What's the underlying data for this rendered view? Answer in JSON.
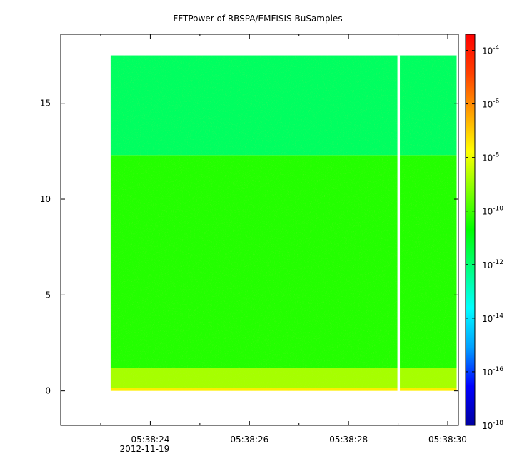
{
  "chart_data": {
    "type": "heatmap",
    "title": "FFTPower of RBSPA/EMFISIS  BuSamples",
    "xlabel": "",
    "ylabel": "",
    "xlim": [
      "05:38:23.0",
      "05:38:30.0"
    ],
    "ylim": [
      -1.8,
      18.6
    ],
    "x_ticks": [
      {
        "value": 1.0,
        "label": "05:38:24",
        "sublabel": "2012-11-19"
      },
      {
        "value": 3.0,
        "label": "05:38:26",
        "sublabel": ""
      },
      {
        "value": 5.0,
        "label": "05:38:28",
        "sublabel": ""
      },
      {
        "value": 7.0,
        "label": "05:38:30",
        "sublabel": ""
      }
    ],
    "x_minor_ticks": [
      0.0,
      2.0,
      4.0,
      6.0
    ],
    "y_ticks": [
      0,
      5,
      10,
      15
    ],
    "data_extent": {
      "x_start": 0.2,
      "x_end": 7.18,
      "y_start": 0.0,
      "y_end": 17.5
    },
    "gap": {
      "x_start": 6.0,
      "x_end": 6.05
    },
    "power_bands": [
      {
        "y_from": 0.0,
        "y_to": 0.15,
        "log10_power": -7.5
      },
      {
        "y_from": 0.15,
        "y_to": 1.2,
        "log10_power": -8.8
      },
      {
        "y_from": 1.2,
        "y_to": 12.3,
        "log10_power": -10.3
      },
      {
        "y_from": 12.3,
        "y_to": 17.5,
        "log10_power": -11.8
      }
    ],
    "colorbar": {
      "scale": "log",
      "range": [
        -18,
        -3.4
      ],
      "ticks": [
        {
          "exp": -4,
          "label": "10",
          "sup": "-4"
        },
        {
          "exp": -6,
          "label": "10",
          "sup": "-6"
        },
        {
          "exp": -8,
          "label": "10",
          "sup": "-8"
        },
        {
          "exp": -10,
          "label": "10",
          "sup": "-10"
        },
        {
          "exp": -12,
          "label": "10",
          "sup": "-12"
        },
        {
          "exp": -14,
          "label": "10",
          "sup": "-14"
        },
        {
          "exp": -16,
          "label": "10",
          "sup": "-16"
        },
        {
          "exp": -18,
          "label": "10",
          "sup": "-18"
        }
      ],
      "colors": [
        "#0000a0",
        "#0000ff",
        "#00a0ff",
        "#00ffff",
        "#00ff80",
        "#00ff00",
        "#80ff00",
        "#ffff00",
        "#ffa000",
        "#ff4000",
        "#ff0000"
      ]
    },
    "grid": false
  }
}
